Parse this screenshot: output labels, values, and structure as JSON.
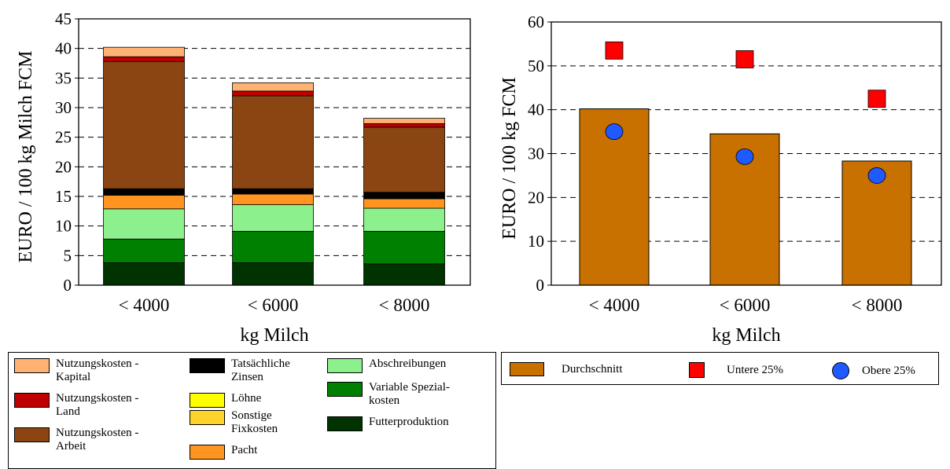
{
  "colors": {
    "futter": "#003300",
    "variable": "#008000",
    "abschreibungen": "#8CF08C",
    "pacht": "#FF9420",
    "sonstige": "#FFD42A",
    "loehne": "#FFFF00",
    "zinsen": "#000000",
    "arbeit": "#8B4513",
    "land": "#C00000",
    "kapital": "#FFB273",
    "durchschnitt": "#C87000",
    "untere": "#FF0000",
    "obere": "#1E5AFF"
  },
  "chart_data": [
    {
      "type": "bar",
      "stacked": true,
      "categories": [
        "< 4000",
        "< 6000",
        "< 8000"
      ],
      "xlabel": "kg Milch",
      "ylabel": "EURO / 100 kg Milch FCM",
      "ylim": [
        0,
        45
      ],
      "yticks": [
        0,
        5,
        10,
        15,
        20,
        25,
        30,
        35,
        40,
        45
      ],
      "grid": true,
      "series": [
        {
          "key": "futter",
          "name": "Futterproduktion",
          "values": [
            3.8,
            3.8,
            3.6
          ]
        },
        {
          "key": "variable",
          "name": "Variable Spezial-\nkosten",
          "values": [
            4.0,
            5.3,
            5.5
          ]
        },
        {
          "key": "abschreibungen",
          "name": "Abschreibungen",
          "values": [
            5.1,
            4.5,
            3.9
          ]
        },
        {
          "key": "pacht",
          "name": "Pacht",
          "values": [
            2.3,
            1.8,
            1.6
          ]
        },
        {
          "key": "sonstige",
          "name": "Sonstige\nFixkosten",
          "values": [
            0.0,
            0.0,
            0.0
          ]
        },
        {
          "key": "loehne",
          "name": "Löhne",
          "values": [
            0.0,
            0.0,
            0.0
          ]
        },
        {
          "key": "zinsen",
          "name": "Tatsächliche\nZinsen",
          "values": [
            1.1,
            0.9,
            1.1
          ]
        },
        {
          "key": "arbeit",
          "name": "Nutzungskosten -\nArbeit",
          "values": [
            21.5,
            15.7,
            11.0
          ]
        },
        {
          "key": "land",
          "name": "Nutzungskosten -\nLand",
          "values": [
            0.8,
            0.8,
            0.6
          ]
        },
        {
          "key": "kapital",
          "name": "Nutzungskosten -\nKapital",
          "values": [
            1.6,
            1.4,
            0.9
          ]
        }
      ]
    },
    {
      "type": "bar",
      "categories": [
        "< 4000",
        "< 6000",
        "< 8000"
      ],
      "xlabel": "kg Milch",
      "ylabel": "EURO / 100 kg FCM",
      "ylim": [
        0,
        60
      ],
      "yticks": [
        0,
        10,
        20,
        30,
        40,
        50,
        60
      ],
      "grid": true,
      "series": [
        {
          "key": "durchschnitt",
          "name": "Durchschnitt",
          "mark": "bar",
          "values": [
            40.2,
            34.5,
            28.3
          ]
        },
        {
          "key": "untere",
          "name": "Untere 25%",
          "mark": "square",
          "values": [
            53.5,
            51.5,
            42.5
          ]
        },
        {
          "key": "obere",
          "name": "Obere 25%",
          "mark": "circle",
          "values": [
            35.0,
            29.3,
            25.0
          ]
        }
      ]
    }
  ],
  "legend_left": {
    "col1": [
      "kapital",
      "land",
      "arbeit"
    ],
    "col2": [
      "zinsen",
      "loehne",
      "sonstige",
      "pacht"
    ],
    "col3": [
      "abschreibungen",
      "variable",
      "futter"
    ]
  }
}
